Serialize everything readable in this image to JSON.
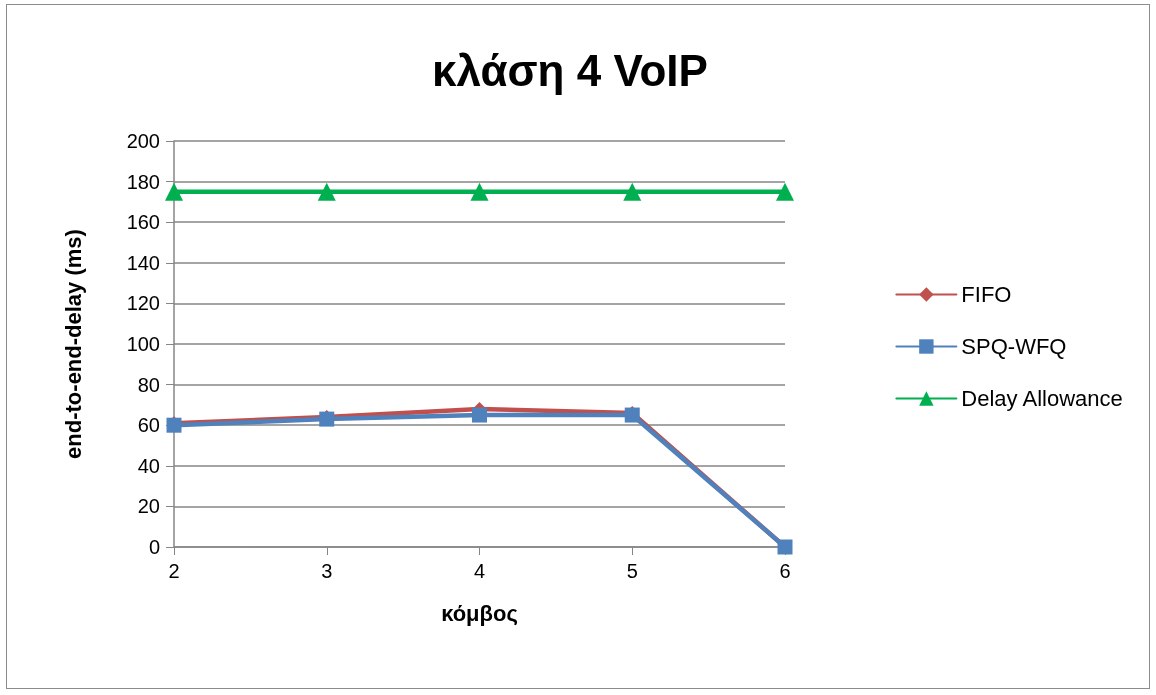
{
  "chart_data": {
    "type": "line",
    "title": "κλάση 4 VoIP",
    "xlabel": "κόμβος",
    "ylabel": "end-to-end-delay (ms)",
    "categories": [
      "2",
      "3",
      "4",
      "5",
      "6"
    ],
    "series": [
      {
        "name": "FIFO",
        "color": "#c0504d",
        "marker": "diamond",
        "values": [
          61,
          64,
          68,
          66,
          0
        ]
      },
      {
        "name": "SPQ-WFQ",
        "color": "#4f81bd",
        "marker": "square",
        "values": [
          60,
          63,
          65,
          65,
          0
        ]
      },
      {
        "name": "Delay Allowance",
        "color": "#00b050",
        "marker": "triangle",
        "values": [
          175,
          175,
          175,
          175,
          175
        ]
      }
    ],
    "ylim": [
      0,
      200
    ],
    "yticks": [
      0,
      20,
      40,
      60,
      80,
      100,
      120,
      140,
      160,
      180,
      200
    ],
    "grid": "y",
    "legend": "right",
    "line_style": "solid"
  }
}
